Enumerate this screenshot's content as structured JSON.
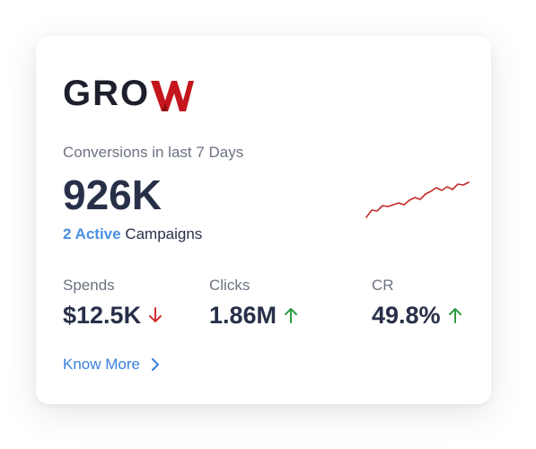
{
  "brand": {
    "name_text": "GRO",
    "name_accent": "W",
    "accent_color": "#c4161c",
    "text_color": "#1d1f2c"
  },
  "summary": {
    "title": "Conversions in last 7 Days",
    "value": "926K",
    "active_count": "2 Active",
    "campaigns_label": "Campaigns"
  },
  "trend": {
    "color": "#c62828",
    "values": [
      0,
      8,
      7,
      13,
      12,
      14,
      16,
      14,
      19,
      22,
      20,
      26,
      29,
      33,
      30,
      34,
      31,
      37,
      36,
      39
    ]
  },
  "metrics": [
    {
      "label": "Spends",
      "value": "$12.5K",
      "direction": "down",
      "arrow_icon": "arrow-down-icon",
      "color": "#d32f2f"
    },
    {
      "label": "Clicks",
      "value": "1.86M",
      "direction": "up",
      "arrow_icon": "arrow-up-icon",
      "color": "#2e9b3e"
    },
    {
      "label": "CR",
      "value": "49.8%",
      "direction": "up",
      "arrow_icon": "arrow-up-icon",
      "color": "#2e9b3e"
    }
  ],
  "footer": {
    "link_label": "Know More",
    "link_icon": "chevron-right-icon",
    "link_color": "#3c7fde"
  }
}
